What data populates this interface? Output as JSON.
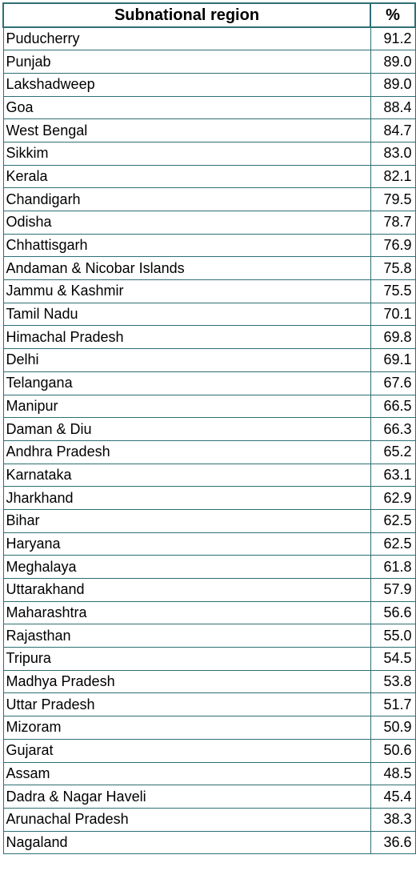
{
  "chart_data": {
    "type": "table",
    "columns": [
      "Subnational region",
      "%"
    ],
    "rows": [
      [
        "Puducherry",
        "91.2"
      ],
      [
        "Punjab",
        "89.0"
      ],
      [
        "Lakshadweep",
        "89.0"
      ],
      [
        "Goa",
        "88.4"
      ],
      [
        "West Bengal",
        "84.7"
      ],
      [
        "Sikkim",
        "83.0"
      ],
      [
        "Kerala",
        "82.1"
      ],
      [
        "Chandigarh",
        "79.5"
      ],
      [
        "Odisha",
        "78.7"
      ],
      [
        "Chhattisgarh",
        "76.9"
      ],
      [
        "Andaman & Nicobar Islands",
        "75.8"
      ],
      [
        "Jammu & Kashmir",
        "75.5"
      ],
      [
        "Tamil Nadu",
        "70.1"
      ],
      [
        "Himachal Pradesh",
        "69.8"
      ],
      [
        "Delhi",
        "69.1"
      ],
      [
        "Telangana",
        "67.6"
      ],
      [
        "Manipur",
        "66.5"
      ],
      [
        "Daman & Diu",
        "66.3"
      ],
      [
        "Andhra Pradesh",
        "65.2"
      ],
      [
        "Karnataka",
        "63.1"
      ],
      [
        "Jharkhand",
        "62.9"
      ],
      [
        "Bihar",
        "62.5"
      ],
      [
        "Haryana",
        "62.5"
      ],
      [
        "Meghalaya",
        "61.8"
      ],
      [
        "Uttarakhand",
        "57.9"
      ],
      [
        "Maharashtra",
        "56.6"
      ],
      [
        "Rajasthan",
        "55.0"
      ],
      [
        "Tripura",
        "54.5"
      ],
      [
        "Madhya Pradesh",
        "53.8"
      ],
      [
        "Uttar Pradesh",
        "51.7"
      ],
      [
        "Mizoram",
        "50.9"
      ],
      [
        "Gujarat",
        "50.6"
      ],
      [
        "Assam",
        "48.5"
      ],
      [
        "Dadra & Nagar Haveli",
        "45.4"
      ],
      [
        "Arunachal Pradesh",
        "38.3"
      ],
      [
        "Nagaland",
        "36.6"
      ]
    ]
  },
  "colors": {
    "border": "#2e6f74",
    "text": "#000000"
  }
}
